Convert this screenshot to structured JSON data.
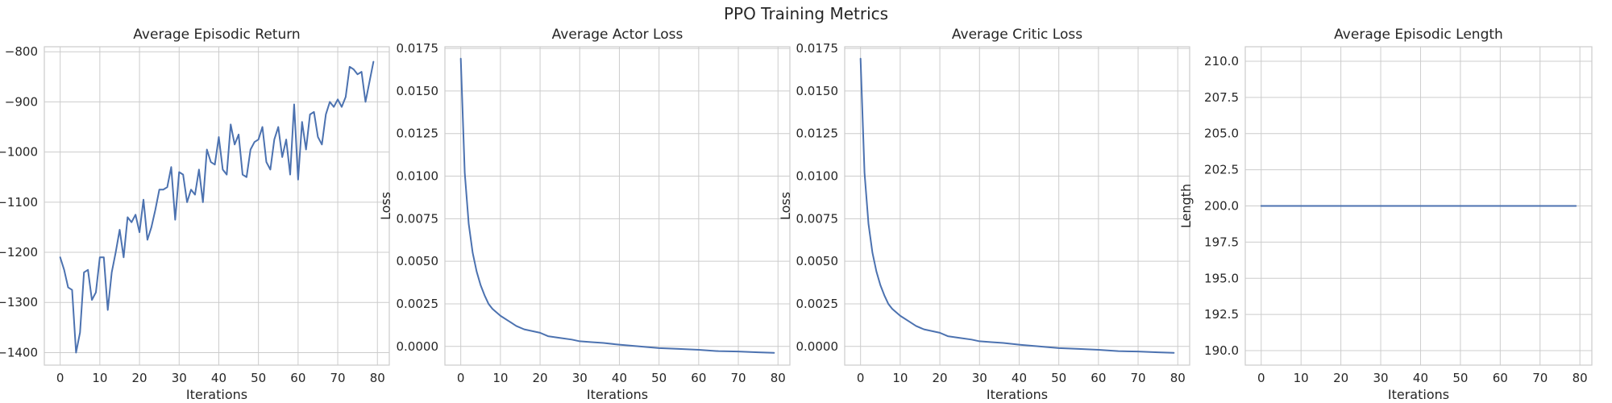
{
  "figure": {
    "title": "PPO Training Metrics",
    "line_color": "#4c72b0",
    "grid_color": "#cccccc"
  },
  "chart_data": [
    {
      "type": "line",
      "title": "Average Episodic Return",
      "xlabel": "Iterations",
      "ylabel": "",
      "xlim": [
        -4,
        83
      ],
      "ylim": [
        -1425,
        -790
      ],
      "xticks": [
        0,
        10,
        20,
        30,
        40,
        50,
        60,
        70,
        80
      ],
      "yticks": [
        -1400,
        -1300,
        -1200,
        -1100,
        -1000,
        -900,
        -800
      ],
      "ytick_labels": [
        "−1400",
        "−1300",
        "−1200",
        "−1100",
        "−1000",
        "−900",
        "−800"
      ],
      "grid": true,
      "series": [
        {
          "x": [
            0,
            1,
            2,
            3,
            4,
            5,
            6,
            7,
            8,
            9,
            10,
            11,
            12,
            13,
            14,
            15,
            16,
            17,
            18,
            19,
            20,
            21,
            22,
            23,
            24,
            25,
            26,
            27,
            28,
            29,
            30,
            31,
            32,
            33,
            34,
            35,
            36,
            37,
            38,
            39,
            40,
            41,
            42,
            43,
            44,
            45,
            46,
            47,
            48,
            49,
            50,
            51,
            52,
            53,
            54,
            55,
            56,
            57,
            58,
            59,
            60,
            61,
            62,
            63,
            64,
            65,
            66,
            67,
            68,
            69,
            70,
            71,
            72,
            73,
            74,
            75,
            76,
            77,
            78,
            79
          ],
          "y": [
            -1210,
            -1235,
            -1270,
            -1275,
            -1400,
            -1360,
            -1240,
            -1235,
            -1295,
            -1280,
            -1210,
            -1210,
            -1315,
            -1240,
            -1200,
            -1155,
            -1210,
            -1130,
            -1140,
            -1125,
            -1160,
            -1095,
            -1175,
            -1150,
            -1115,
            -1075,
            -1075,
            -1070,
            -1030,
            -1135,
            -1040,
            -1045,
            -1100,
            -1075,
            -1085,
            -1035,
            -1100,
            -995,
            -1020,
            -1025,
            -970,
            -1035,
            -1045,
            -945,
            -985,
            -965,
            -1045,
            -1050,
            -995,
            -980,
            -975,
            -950,
            -1020,
            -1035,
            -975,
            -950,
            -1010,
            -975,
            -1045,
            -905,
            -1055,
            -940,
            -995,
            -925,
            -920,
            -970,
            -985,
            -925,
            -900,
            -910,
            -895,
            -910,
            -890,
            -830,
            -835,
            -845,
            -840,
            -900,
            -860,
            -820
          ]
        }
      ]
    },
    {
      "type": "line",
      "title": "Average Actor Loss",
      "xlabel": "Iterations",
      "ylabel": "Loss",
      "xlim": [
        -4,
        83
      ],
      "ylim": [
        -0.0011,
        0.0176
      ],
      "xticks": [
        0,
        10,
        20,
        30,
        40,
        50,
        60,
        70,
        80
      ],
      "yticks": [
        0,
        0.0025,
        0.005,
        0.0075,
        0.01,
        0.0125,
        0.015,
        0.0175
      ],
      "ytick_labels": [
        "0.0000",
        "0.0025",
        "0.0050",
        "0.0075",
        "0.0100",
        "0.0125",
        "0.0150",
        "0.0175"
      ],
      "grid": true,
      "series": [
        {
          "x": [
            0,
            1,
            2,
            3,
            4,
            5,
            6,
            7,
            8,
            9,
            10,
            12,
            14,
            16,
            18,
            20,
            22,
            25,
            28,
            30,
            33,
            36,
            40,
            45,
            50,
            55,
            60,
            65,
            70,
            75,
            79
          ],
          "y": [
            0.0169,
            0.0102,
            0.0072,
            0.0055,
            0.0044,
            0.0036,
            0.003,
            0.0025,
            0.0022,
            0.002,
            0.0018,
            0.0015,
            0.0012,
            0.001,
            0.0009,
            0.0008,
            0.0006,
            0.0005,
            0.0004,
            0.0003,
            0.00025,
            0.0002,
            0.0001,
            0.0,
            -0.0001,
            -0.00015,
            -0.0002,
            -0.00028,
            -0.0003,
            -0.00035,
            -0.00038
          ]
        }
      ]
    },
    {
      "type": "line",
      "title": "Average Critic Loss",
      "xlabel": "Iterations",
      "ylabel": "Loss",
      "xlim": [
        -4,
        83
      ],
      "ylim": [
        -0.0011,
        0.0176
      ],
      "xticks": [
        0,
        10,
        20,
        30,
        40,
        50,
        60,
        70,
        80
      ],
      "yticks": [
        0,
        0.0025,
        0.005,
        0.0075,
        0.01,
        0.0125,
        0.015,
        0.0175
      ],
      "ytick_labels": [
        "0.0000",
        "0.0025",
        "0.0050",
        "0.0075",
        "0.0100",
        "0.0125",
        "0.0150",
        "0.0175"
      ],
      "grid": true,
      "series": [
        {
          "x": [
            0,
            1,
            2,
            3,
            4,
            5,
            6,
            7,
            8,
            9,
            10,
            12,
            14,
            16,
            18,
            20,
            22,
            25,
            28,
            30,
            33,
            36,
            40,
            45,
            50,
            55,
            60,
            65,
            70,
            75,
            79
          ],
          "y": [
            0.0169,
            0.0102,
            0.0072,
            0.0055,
            0.0044,
            0.0036,
            0.003,
            0.0025,
            0.0022,
            0.002,
            0.0018,
            0.0015,
            0.0012,
            0.001,
            0.0009,
            0.0008,
            0.0006,
            0.0005,
            0.0004,
            0.0003,
            0.00025,
            0.0002,
            0.0001,
            0.0,
            -0.0001,
            -0.00015,
            -0.0002,
            -0.00028,
            -0.0003,
            -0.00035,
            -0.00038
          ]
        }
      ]
    },
    {
      "type": "line",
      "title": "Average Episodic Length",
      "xlabel": "Iterations",
      "ylabel": "Length",
      "xlim": [
        -4,
        83
      ],
      "ylim": [
        189.0,
        211.0
      ],
      "xticks": [
        0,
        10,
        20,
        30,
        40,
        50,
        60,
        70,
        80
      ],
      "yticks": [
        190.0,
        192.5,
        195.0,
        197.5,
        200.0,
        202.5,
        205.0,
        207.5,
        210.0
      ],
      "ytick_labels": [
        "190.0",
        "192.5",
        "195.0",
        "197.5",
        "200.0",
        "202.5",
        "205.0",
        "207.5",
        "210.0"
      ],
      "grid": true,
      "series": [
        {
          "x": [
            0,
            79
          ],
          "y": [
            200,
            200
          ]
        }
      ]
    }
  ]
}
